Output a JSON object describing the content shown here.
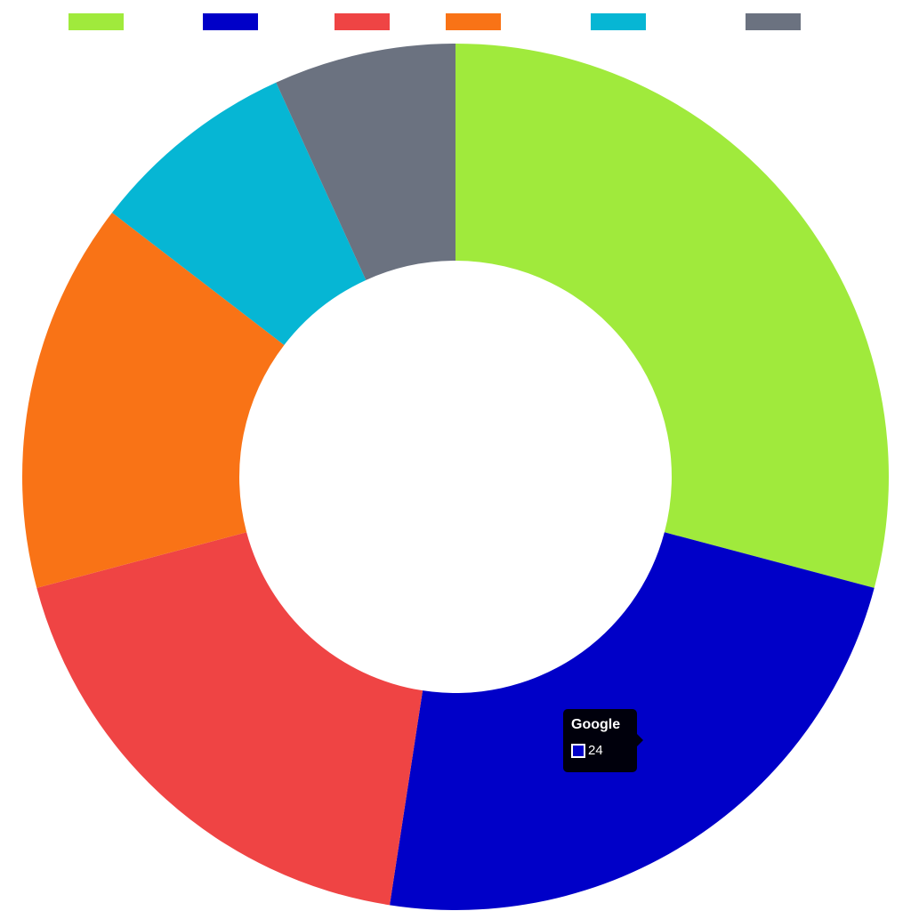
{
  "chart_data": {
    "type": "pie",
    "variant": "doughnut",
    "legend_position": "top",
    "slices": [
      {
        "label": "",
        "value": 30,
        "color": "#a0ea3c"
      },
      {
        "label": "Google",
        "value": 24,
        "color": "#0000c8"
      },
      {
        "label": "",
        "value": 19,
        "color": "#ef4444"
      },
      {
        "label": "",
        "value": 15,
        "color": "#f97316"
      },
      {
        "label": "",
        "value": 8,
        "color": "#06b6d4"
      },
      {
        "label": "",
        "value": 7,
        "color": "#6b7280"
      }
    ]
  },
  "tooltip": {
    "title": "Google",
    "value": "24",
    "swatch_color": "#0000c8"
  }
}
